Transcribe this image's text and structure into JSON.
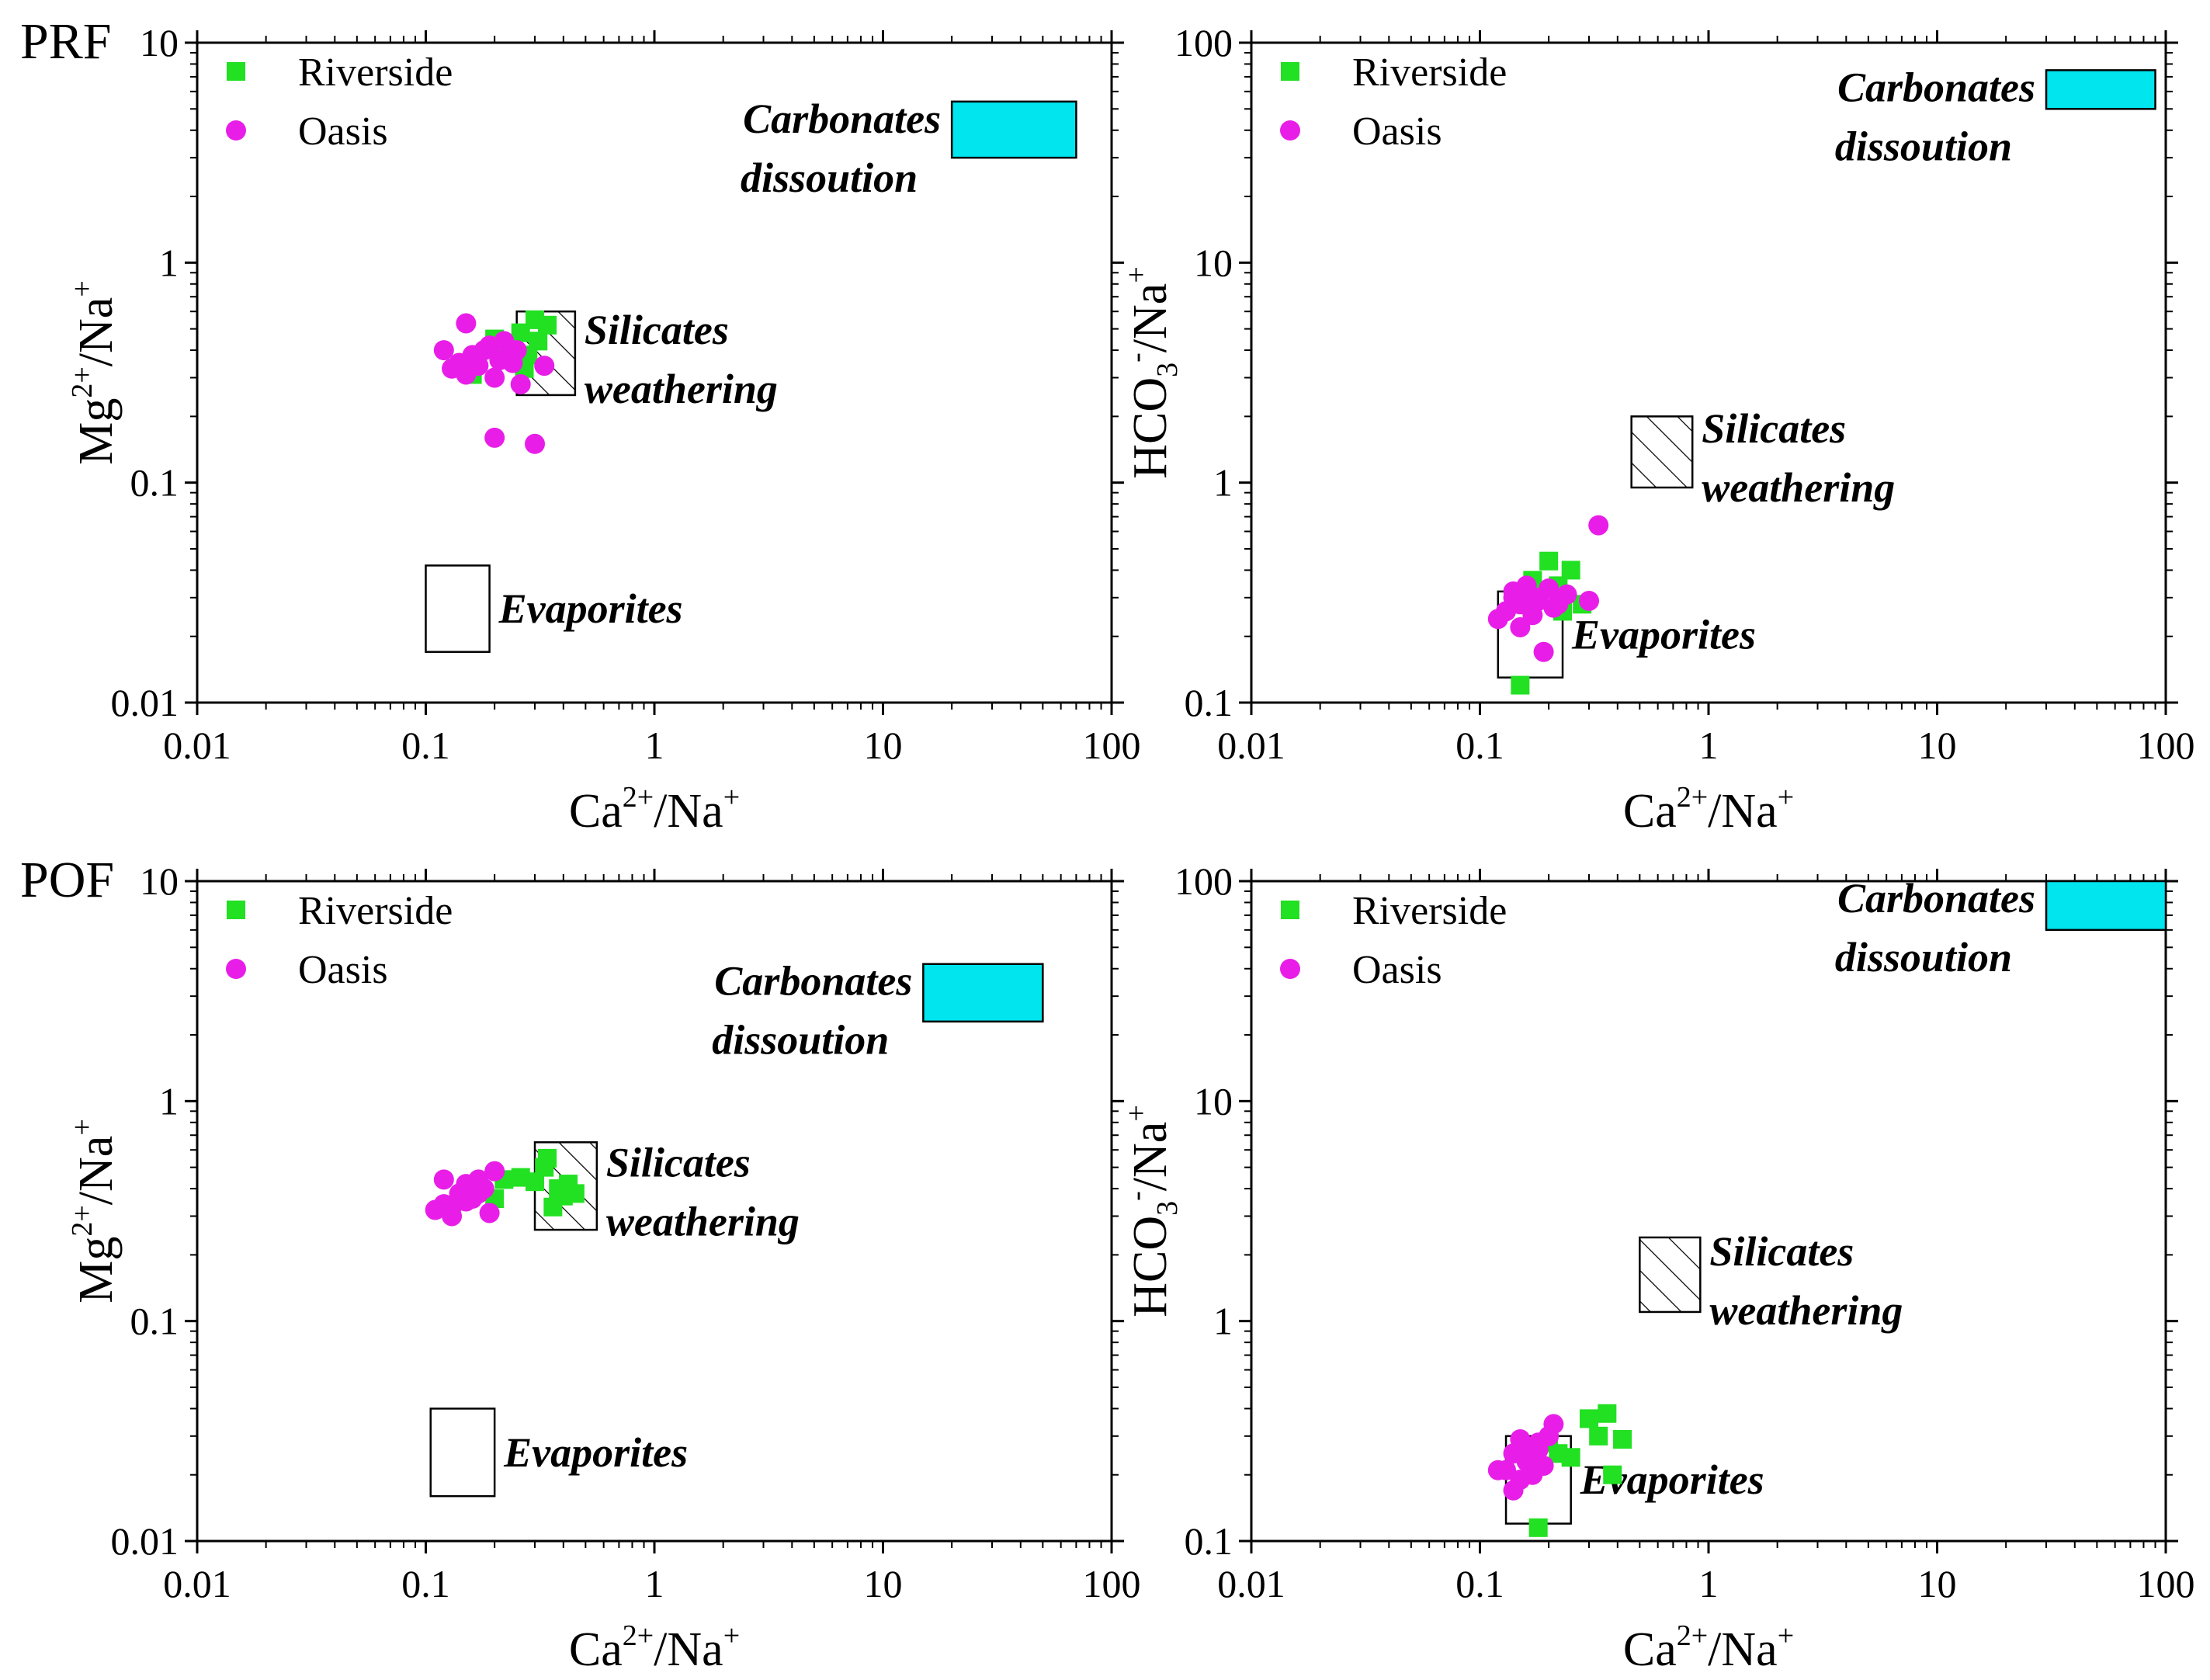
{
  "colors": {
    "riverside": "#22e022",
    "oasis": "#e81ee8",
    "carbonates_fill": "#00e5ee",
    "axis": "#000000"
  },
  "legend": {
    "riverside_label": "Riverside",
    "oasis_label": "Oasis",
    "riverside_marker": "square",
    "oasis_marker": "circle"
  },
  "region_labels": {
    "carbonates_line1": "Carbonates",
    "carbonates_line2": "dissoution",
    "silicates_line1": "Silicates",
    "silicates_line2": "weathering",
    "evaporites": "Evaporites"
  },
  "chart_data": [
    {
      "type": "scatter",
      "panel_label": "PRF",
      "xscale": "log",
      "yscale": "log",
      "xlim": [
        0.01,
        100
      ],
      "ylim": [
        0.01,
        10
      ],
      "xticks": [
        "0.01",
        "0.1",
        "1",
        "10",
        "100"
      ],
      "yticks": [
        "0.01",
        "0.1",
        "1",
        "10"
      ],
      "xlabel": "Ca2+/Na+",
      "ylabel": "Mg2+/Na+",
      "xlabel_parts": {
        "base1": "Ca",
        "sup1": "2+",
        "mid": "/Na",
        "sup2": "+"
      },
      "ylabel_parts": {
        "base1": "Mg",
        "sup1": "2+",
        "mid": "/Na",
        "sup2": "+"
      },
      "legend_position": "top-left",
      "regions": [
        {
          "name": "Carbonates dissoution",
          "style": "filled",
          "x": [
            20,
            70
          ],
          "y": [
            3.0,
            5.4
          ]
        },
        {
          "name": "Silicates weathering",
          "style": "hatched",
          "x": [
            0.25,
            0.45
          ],
          "y": [
            0.25,
            0.6
          ]
        },
        {
          "name": "Evaporites",
          "style": "open",
          "x": [
            0.1,
            0.19
          ],
          "y": [
            0.017,
            0.042
          ]
        }
      ],
      "series": [
        {
          "name": "Riverside",
          "marker": "square",
          "x": [
            0.2,
            0.24,
            0.26,
            0.3,
            0.28,
            0.34,
            0.27,
            0.16,
            0.22,
            0.31
          ],
          "y": [
            0.45,
            0.42,
            0.48,
            0.55,
            0.38,
            0.52,
            0.33,
            0.31,
            0.4,
            0.44
          ]
        },
        {
          "name": "Oasis",
          "marker": "circle",
          "x": [
            0.12,
            0.15,
            0.13,
            0.16,
            0.18,
            0.14,
            0.22,
            0.2,
            0.24,
            0.26,
            0.17,
            0.23,
            0.19,
            0.21,
            0.33,
            0.15,
            0.25,
            0.2,
            0.3
          ],
          "y": [
            0.4,
            0.53,
            0.33,
            0.38,
            0.4,
            0.35,
            0.44,
            0.3,
            0.35,
            0.28,
            0.34,
            0.38,
            0.42,
            0.36,
            0.34,
            0.31,
            0.4,
            0.16,
            0.15
          ]
        }
      ]
    },
    {
      "type": "scatter",
      "panel_label": "",
      "xscale": "log",
      "yscale": "log",
      "xlim": [
        0.01,
        100
      ],
      "ylim": [
        0.1,
        100
      ],
      "xticks": [
        "0.01",
        "0.1",
        "1",
        "10",
        "100"
      ],
      "yticks": [
        "0.1",
        "1",
        "10",
        "100"
      ],
      "xlabel": "Ca2+/Na+",
      "ylabel": "HCO3-/Na+",
      "xlabel_parts": {
        "base1": "Ca",
        "sup1": "2+",
        "mid": "/Na",
        "sup2": "+"
      },
      "ylabel_parts": {
        "base1": "HCO",
        "sub1": "3",
        "sup1": "-",
        "mid": "/Na",
        "sup2": "+"
      },
      "legend_position": "top-left",
      "regions": [
        {
          "name": "Carbonates dissoution",
          "style": "filled",
          "x": [
            30,
            90
          ],
          "y": [
            50,
            75
          ]
        },
        {
          "name": "Silicates weathering",
          "style": "hatched",
          "x": [
            0.46,
            0.85
          ],
          "y": [
            0.95,
            2.0
          ]
        },
        {
          "name": "Evaporites",
          "style": "open",
          "x": [
            0.12,
            0.23
          ],
          "y": [
            0.13,
            0.32
          ]
        }
      ],
      "series": [
        {
          "name": "Riverside",
          "marker": "square",
          "x": [
            0.2,
            0.25,
            0.18,
            0.22,
            0.28,
            0.15,
            0.17,
            0.23
          ],
          "y": [
            0.44,
            0.4,
            0.3,
            0.34,
            0.28,
            0.12,
            0.36,
            0.26
          ]
        },
        {
          "name": "Oasis",
          "marker": "circle",
          "x": [
            0.12,
            0.14,
            0.15,
            0.16,
            0.18,
            0.13,
            0.2,
            0.22,
            0.24,
            0.17,
            0.15,
            0.19,
            0.21,
            0.3,
            0.33,
            0.14,
            0.16,
            0.18
          ],
          "y": [
            0.24,
            0.32,
            0.28,
            0.33,
            0.3,
            0.26,
            0.33,
            0.28,
            0.31,
            0.25,
            0.22,
            0.17,
            0.27,
            0.29,
            0.64,
            0.3,
            0.34,
            0.29
          ]
        }
      ]
    },
    {
      "type": "scatter",
      "panel_label": "POF",
      "xscale": "log",
      "yscale": "log",
      "xlim": [
        0.01,
        100
      ],
      "ylim": [
        0.01,
        10
      ],
      "xticks": [
        "0.01",
        "0.1",
        "1",
        "10",
        "100"
      ],
      "yticks": [
        "0.01",
        "0.1",
        "1",
        "10"
      ],
      "xlabel": "Ca2+/Na+",
      "ylabel": "Mg2+/Na+",
      "xlabel_parts": {
        "base1": "Ca",
        "sup1": "2+",
        "mid": "/Na",
        "sup2": "+"
      },
      "ylabel_parts": {
        "base1": "Mg",
        "sup1": "2+",
        "mid": "/Na",
        "sup2": "+"
      },
      "legend_position": "top-left",
      "regions": [
        {
          "name": "Carbonates dissoution",
          "style": "filled",
          "x": [
            15,
            50
          ],
          "y": [
            2.3,
            4.2
          ]
        },
        {
          "name": "Silicates weathering",
          "style": "hatched",
          "x": [
            0.3,
            0.56
          ],
          "y": [
            0.26,
            0.65
          ]
        },
        {
          "name": "Evaporites",
          "style": "open",
          "x": [
            0.105,
            0.2
          ],
          "y": [
            0.016,
            0.04
          ]
        }
      ],
      "series": [
        {
          "name": "Riverside",
          "marker": "square",
          "x": [
            0.22,
            0.26,
            0.3,
            0.34,
            0.38,
            0.42,
            0.36,
            0.4,
            0.33,
            0.2,
            0.45
          ],
          "y": [
            0.44,
            0.45,
            0.43,
            0.55,
            0.4,
            0.42,
            0.33,
            0.37,
            0.5,
            0.36,
            0.38
          ]
        },
        {
          "name": "Oasis",
          "marker": "circle",
          "x": [
            0.11,
            0.12,
            0.13,
            0.14,
            0.15,
            0.16,
            0.17,
            0.18,
            0.19,
            0.2,
            0.13,
            0.15,
            0.17,
            0.12
          ],
          "y": [
            0.32,
            0.44,
            0.33,
            0.38,
            0.42,
            0.36,
            0.44,
            0.4,
            0.31,
            0.48,
            0.3,
            0.35,
            0.38,
            0.34
          ]
        }
      ]
    },
    {
      "type": "scatter",
      "panel_label": "",
      "xscale": "log",
      "yscale": "log",
      "xlim": [
        0.01,
        100
      ],
      "ylim": [
        0.1,
        100
      ],
      "xticks": [
        "0.01",
        "0.1",
        "1",
        "10",
        "100"
      ],
      "yticks": [
        "0.1",
        "1",
        "10",
        "100"
      ],
      "xlabel": "Ca2+/Na+",
      "ylabel": "HCO3-/Na+",
      "xlabel_parts": {
        "base1": "Ca",
        "sup1": "2+",
        "mid": "/Na",
        "sup2": "+"
      },
      "ylabel_parts": {
        "base1": "HCO",
        "sub1": "3",
        "sup1": "-",
        "mid": "/Na",
        "sup2": "+"
      },
      "legend_position": "top-left",
      "regions": [
        {
          "name": "Carbonates dissoution",
          "style": "filled",
          "x": [
            30,
            100
          ],
          "y": [
            60,
            100
          ]
        },
        {
          "name": "Silicates weathering",
          "style": "hatched",
          "x": [
            0.5,
            0.92
          ],
          "y": [
            1.1,
            2.4
          ]
        },
        {
          "name": "Evaporites",
          "style": "open",
          "x": [
            0.13,
            0.25
          ],
          "y": [
            0.12,
            0.3
          ]
        }
      ],
      "series": [
        {
          "name": "Riverside",
          "marker": "square",
          "x": [
            0.3,
            0.36,
            0.42,
            0.33,
            0.25,
            0.38,
            0.18,
            0.22,
            0.2
          ],
          "y": [
            0.36,
            0.38,
            0.29,
            0.3,
            0.24,
            0.2,
            0.115,
            0.25,
            0.28
          ]
        },
        {
          "name": "Oasis",
          "marker": "circle",
          "x": [
            0.12,
            0.14,
            0.15,
            0.16,
            0.17,
            0.18,
            0.19,
            0.2,
            0.21,
            0.14,
            0.16,
            0.18,
            0.15,
            0.17,
            0.13
          ],
          "y": [
            0.21,
            0.17,
            0.29,
            0.26,
            0.2,
            0.28,
            0.22,
            0.3,
            0.34,
            0.25,
            0.23,
            0.26,
            0.19,
            0.24,
            0.21
          ]
        }
      ]
    }
  ]
}
